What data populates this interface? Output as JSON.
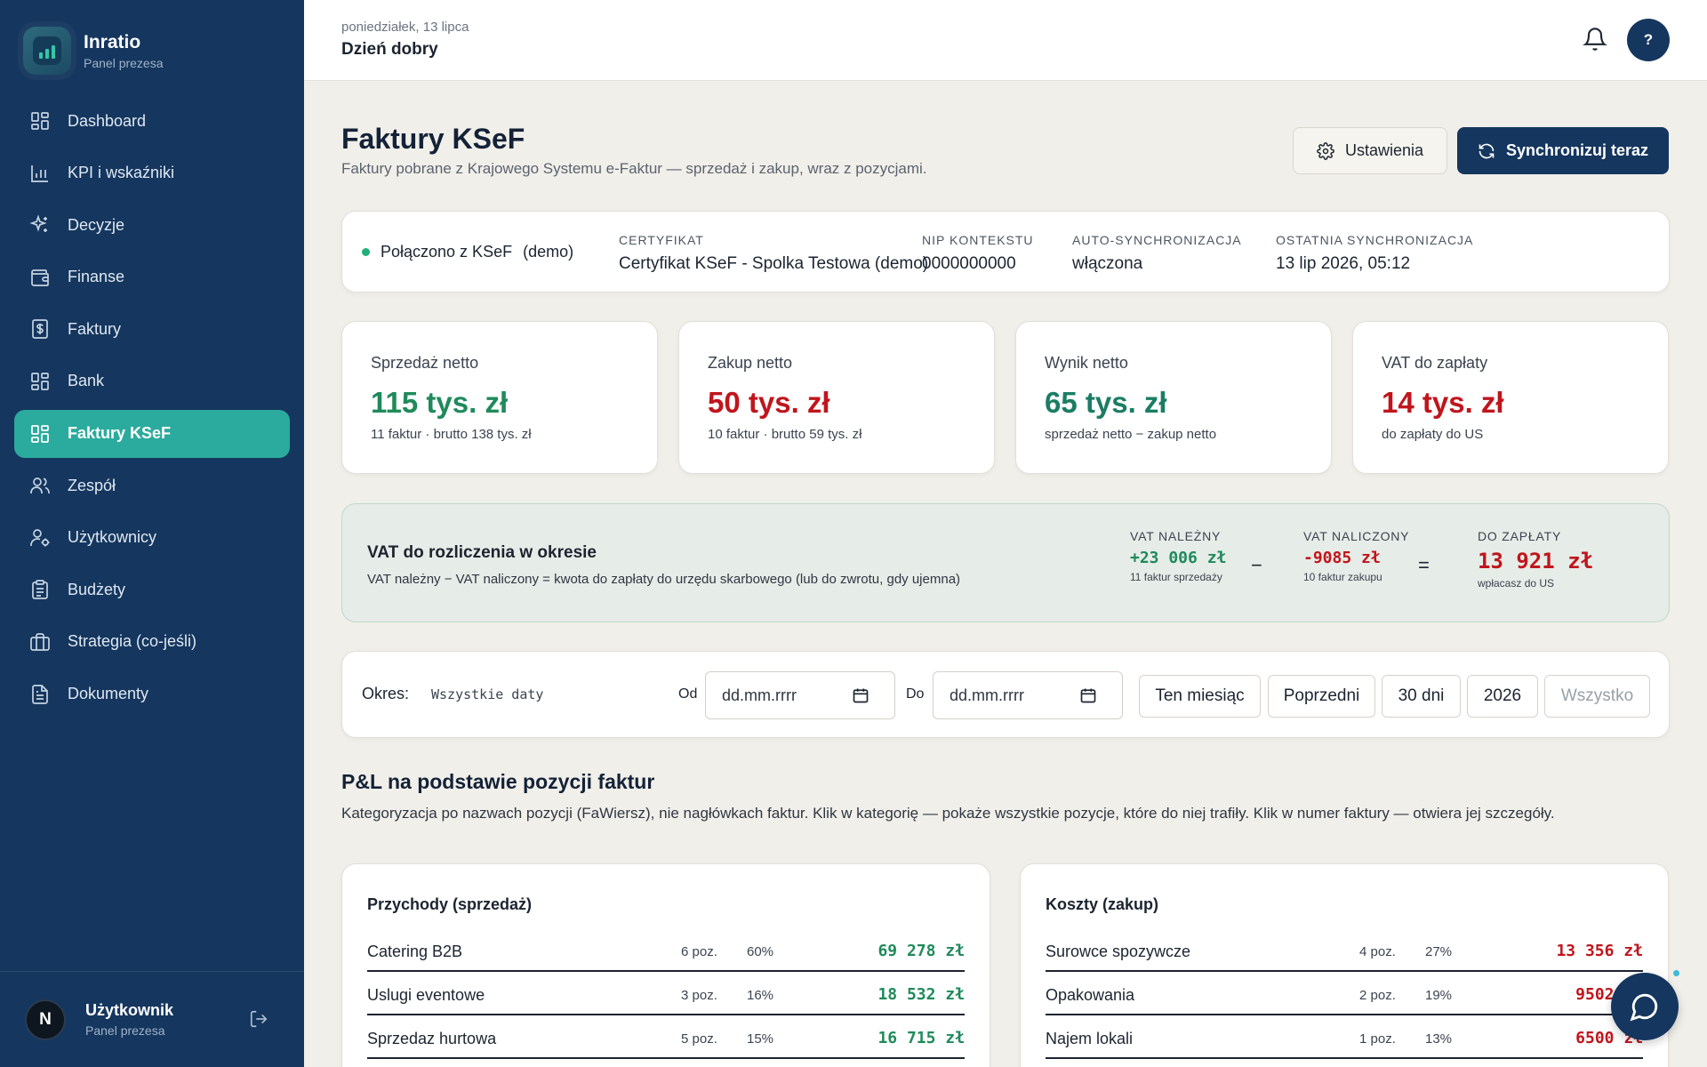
{
  "brand": {
    "name": "Inratio",
    "subtitle": "Panel prezesa"
  },
  "sidebar": {
    "items": [
      {
        "label": "Dashboard",
        "icon": "grid-icon",
        "active": false
      },
      {
        "label": "KPI i wskaźniki",
        "icon": "bar-chart-icon",
        "active": false
      },
      {
        "label": "Decyzje",
        "icon": "sparkles-icon",
        "active": false
      },
      {
        "label": "Finanse",
        "icon": "wallet-icon",
        "active": false
      },
      {
        "label": "Faktury",
        "icon": "invoice-dollar-icon",
        "active": false
      },
      {
        "label": "Bank",
        "icon": "grid-icon",
        "active": false
      },
      {
        "label": "Faktury KSeF",
        "icon": "grid-icon",
        "active": true
      },
      {
        "label": "Zespół",
        "icon": "users-icon",
        "active": false
      },
      {
        "label": "Użytkownicy",
        "icon": "user-cog-icon",
        "active": false
      },
      {
        "label": "Budżety",
        "icon": "clipboard-icon",
        "active": false
      },
      {
        "label": "Strategia (co-jeśli)",
        "icon": "briefcase-icon",
        "active": false
      },
      {
        "label": "Dokumenty",
        "icon": "document-icon",
        "active": false
      }
    ]
  },
  "user": {
    "initial": "N",
    "name": "Użytkownik",
    "role": "Panel prezesa"
  },
  "topbar": {
    "date": "poniedziałek, 13 lipca",
    "greeting": "Dzień dobry",
    "help": "?"
  },
  "page": {
    "title": "Faktury KSeF",
    "subtitle": "Faktury pobrane z Krajowego Systemu e-Faktur — sprzedaż i zakup, wraz z pozycjami.",
    "settings_label": "Ustawienia",
    "sync_label": "Synchronizuj teraz"
  },
  "status": {
    "connected": "Połączono z KSeF",
    "mode": "(demo)",
    "certificate_label": "CERTYFIKAT",
    "certificate_value": "Certyfikat KSeF - Spolka Testowa (demo)",
    "nip_label": "NIP KONTEKSTU",
    "nip_value": "0000000000",
    "autosync_label": "AUTO-SYNCHRONIZACJA",
    "autosync_value": "włączona",
    "lastsync_label": "OSTATNIA SYNCHRONIZACJA",
    "lastsync_value": "13 lip 2026, 05:12",
    "accent": "#20b07a"
  },
  "kpis": [
    {
      "label": "Sprzedaż netto",
      "value": "115 tys. zł",
      "note": "11 faktur · brutto 138 tys. zł",
      "color": "#1f8a5b"
    },
    {
      "label": "Zakup netto",
      "value": "50 tys. zł",
      "note": "10 faktur · brutto 59 tys. zł",
      "color": "#c0151c"
    },
    {
      "label": "Wynik netto",
      "value": "65 tys. zł",
      "note": "sprzedaż netto − zakup netto",
      "color": "#1a7d64"
    },
    {
      "label": "VAT do zapłaty",
      "value": "14 tys. zł",
      "note": "do zapłaty do US",
      "color": "#c0151c"
    }
  ],
  "vat": {
    "title": "VAT do rozliczenia w okresie",
    "description": "VAT należny − VAT naliczony = kwota do zapłaty do urzędu skarbowego (lub do zwrotu, gdy ujemna)",
    "due_label": "VAT NALEŻNY",
    "due_value": "+23 006 zł",
    "due_note": "11 faktur sprzedaży",
    "minus": "−",
    "input_label": "VAT NALICZONY",
    "input_value": "-9085 zł",
    "input_note": "10 faktur zakupu",
    "equals": "=",
    "pay_label": "DO ZAPŁATY",
    "pay_value": "13 921 zł",
    "pay_note": "wpłacasz do US"
  },
  "filter": {
    "label": "Okres:",
    "range": "Wszystkie daty",
    "from_label": "Od",
    "from_placeholder": "dd.mm.rrrr",
    "to_label": "Do",
    "to_placeholder": "dd.mm.rrrr",
    "chips": [
      "Ten miesiąc",
      "Poprzedni",
      "30 dni",
      "2026",
      "Wszystko"
    ]
  },
  "pl": {
    "title": "P&L na podstawie pozycji faktur",
    "description": "Kategoryzacja po nazwach pozycji (FaWiersz), nie nagłówkach faktur. Klik w kategorię — pokaże wszystkie pozycje, które do niej trafiły. Klik w numer faktury — otwiera jej szczegóły.",
    "revenue": {
      "title": "Przychody (sprzedaż)",
      "rows": [
        {
          "name": "Catering B2B",
          "count": "6 poz.",
          "pct": "60%",
          "amount": "69 278 zł"
        },
        {
          "name": "Uslugi eventowe",
          "count": "3 poz.",
          "pct": "16%",
          "amount": "18 532 zł"
        },
        {
          "name": "Sprzedaz hurtowa",
          "count": "5 poz.",
          "pct": "15%",
          "amount": "16 715 zł"
        }
      ]
    },
    "costs": {
      "title": "Koszty (zakup)",
      "rows": [
        {
          "name": "Surowce spozywcze",
          "count": "4 poz.",
          "pct": "27%",
          "amount": "13 356 zł"
        },
        {
          "name": "Opakowania",
          "count": "2 poz.",
          "pct": "19%",
          "amount": "9502 zł"
        },
        {
          "name": "Najem lokali",
          "count": "1 poz.",
          "pct": "13%",
          "amount": "6500 zł"
        }
      ]
    }
  }
}
